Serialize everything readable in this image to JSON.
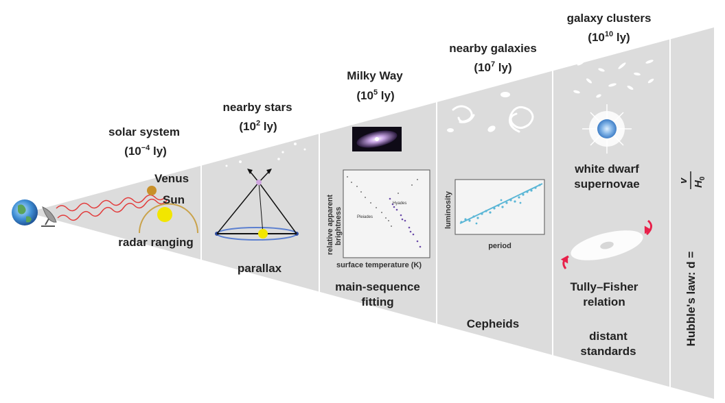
{
  "sections": [
    {
      "id": "solar",
      "title": "solar system",
      "scale_base": "10",
      "scale_exp": "−4",
      "scale_unit": " ly)",
      "method": "radar ranging"
    },
    {
      "id": "stars",
      "title": "nearby stars",
      "scale_base": "10",
      "scale_exp": "2",
      "scale_unit": " ly)",
      "method": "parallax"
    },
    {
      "id": "milkyway",
      "title": "Milky Way",
      "scale_base": "10",
      "scale_exp": "5",
      "scale_unit": " ly)",
      "method_line1": "main-sequence",
      "method_line2": "fitting"
    },
    {
      "id": "galaxies",
      "title": "nearby galaxies",
      "scale_base": "10",
      "scale_exp": "7",
      "scale_unit": " ly)",
      "method": "Cepheids"
    },
    {
      "id": "clusters",
      "title": "galaxy clusters",
      "scale_base": "10",
      "scale_exp": "10",
      "scale_unit": " ly)",
      "method_a_line1": "white dwarf",
      "method_a_line2": "supernovae",
      "method_b_line1": "Tully–Fisher",
      "method_b_line2": "relation",
      "method_c_line1": "distant",
      "method_c_line2": "standards"
    }
  ],
  "solar_labels": {
    "venus": "Venus",
    "sun": "Sun"
  },
  "hr_plot": {
    "ylabel_line1": "relative apparent",
    "ylabel_line2": "brightness",
    "xlabel": "surface temperature (K)",
    "label_a": "Pleiades",
    "label_b": "Hyades"
  },
  "cepheid_plot": {
    "ylabel": "luminosity",
    "xlabel": "period"
  },
  "hubble": {
    "text": "Hubble's law: d = ",
    "num": "v",
    "den_base": "H",
    "den_sub": "0"
  },
  "colors": {
    "cone": "#dcdcdc",
    "divider": "#ffffff",
    "sun": "#f2e600",
    "radar": "#e23b3b",
    "cepheid": "#5ab6d6",
    "supernova": "#7fb2e6",
    "tully": "#e8204a"
  }
}
